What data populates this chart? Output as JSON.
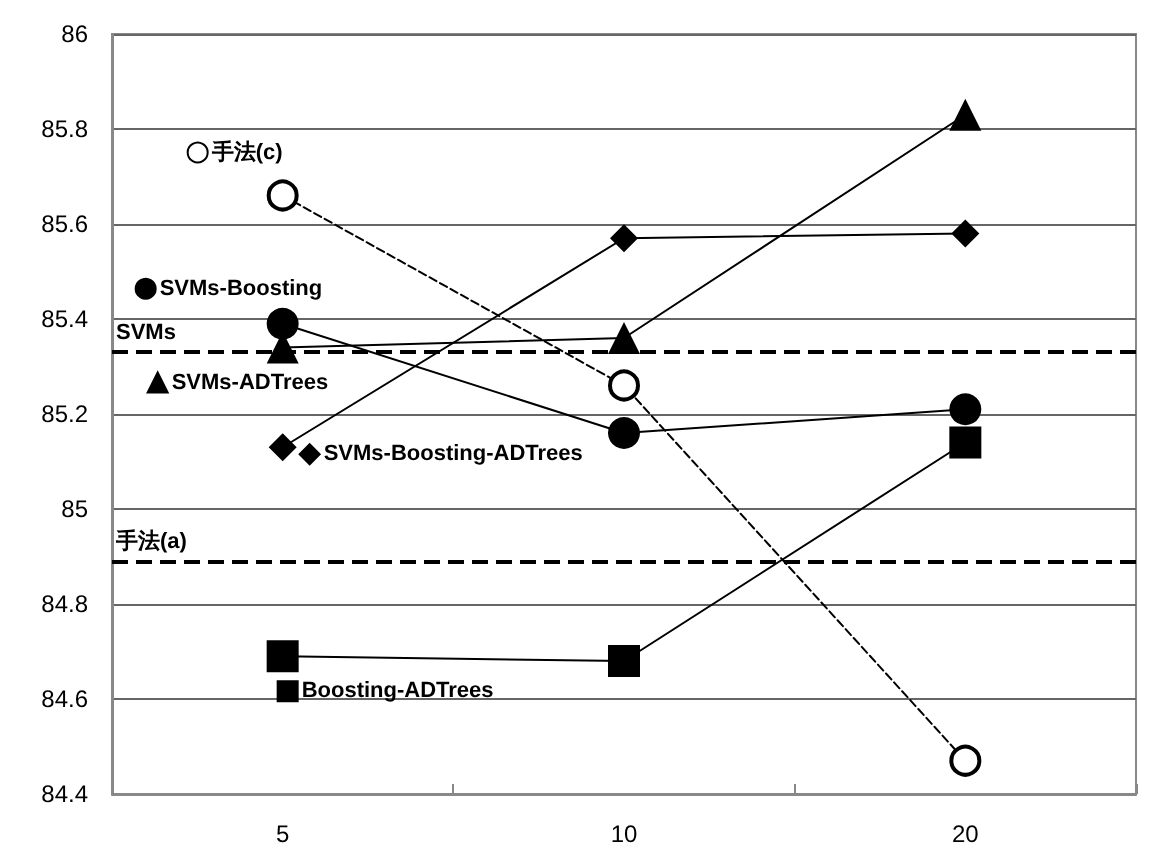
{
  "chart_data": {
    "type": "line",
    "categories": [
      "5",
      "10",
      "20"
    ],
    "series": [
      {
        "name": "SVMs-Boosting",
        "color": "#000000",
        "marker": "circle",
        "line_style": "solid",
        "values": [
          85.39,
          85.16,
          85.21
        ]
      },
      {
        "name": "SVMs-ADTrees",
        "color": "#000000",
        "marker": "triangle",
        "line_style": "solid",
        "values": [
          85.34,
          85.36,
          85.83
        ]
      },
      {
        "name": "SVMs-Boosting-ADTrees",
        "color": "#000000",
        "marker": "diamond",
        "line_style": "solid",
        "values": [
          85.13,
          85.57,
          85.58
        ]
      },
      {
        "name": "Boosting-ADTrees",
        "color": "#000000",
        "marker": "square",
        "line_style": "solid",
        "values": [
          84.69,
          84.68,
          85.14
        ]
      },
      {
        "name": "手法(c)",
        "color": "#000000",
        "marker": "open circle",
        "line_style": "dashed",
        "values": [
          85.66,
          85.26,
          84.47
        ]
      }
    ],
    "ref_lines": [
      {
        "axis": "y",
        "value": 85.33,
        "label": "SVMs",
        "color": "#000000",
        "line_style": "dashed"
      },
      {
        "axis": "y",
        "value": 84.89,
        "label": "手法(a)",
        "color": "#000000",
        "line_style": "dashed"
      }
    ],
    "ylim": [
      84.4,
      86
    ],
    "yticks": [
      84.4,
      84.6,
      84.8,
      85,
      85.2,
      85.4,
      85.6,
      85.8,
      86
    ],
    "grid": "y",
    "legend": "left"
  }
}
